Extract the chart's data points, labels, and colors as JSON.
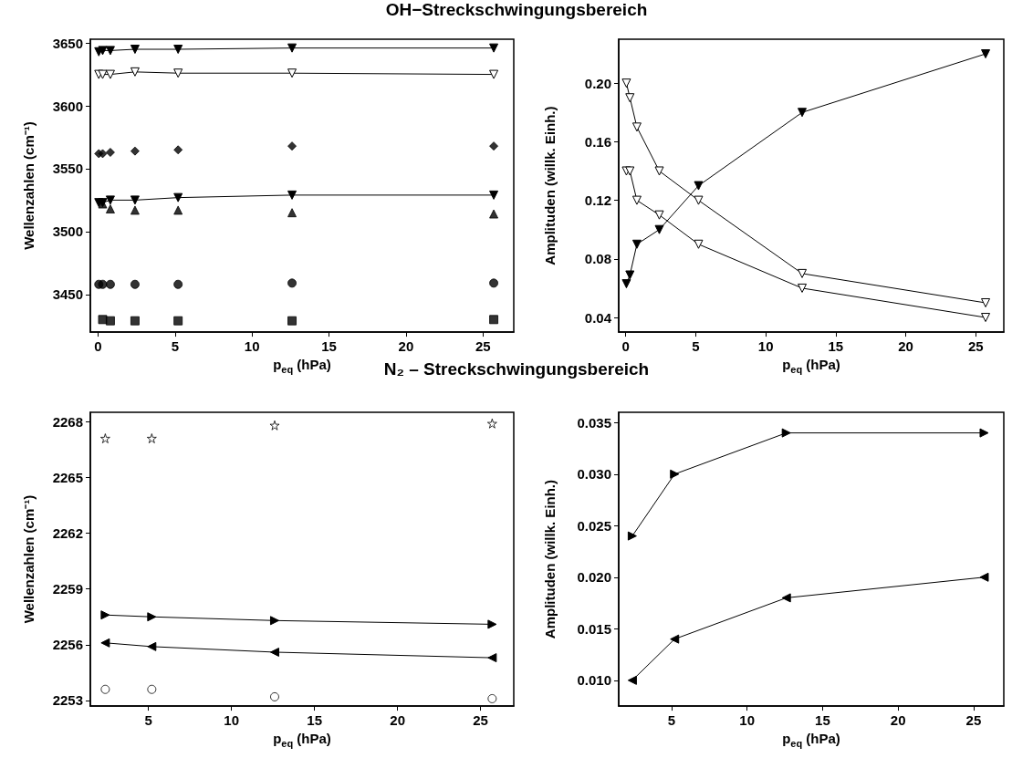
{
  "chart_data": [
    {
      "type": "line",
      "title": "OH−Streckschwingungsbereich",
      "xlabel": "p$_{eq}$ (hPa)",
      "ylabel": "Wellenzahlen (cm⁻¹)",
      "x": [
        0.05,
        0.3,
        0.8,
        2.4,
        5.2,
        12.6,
        25.7
      ],
      "xlim": [
        -0.5,
        27
      ],
      "xticks": [
        0,
        5,
        10,
        15,
        20,
        25
      ],
      "ylim": [
        3420,
        3653
      ],
      "yticks": [
        3450,
        3500,
        3550,
        3600,
        3650
      ],
      "grid": false,
      "line_style": "solid",
      "series": [
        {
          "type": "line",
          "marker": "triangle-down",
          "color": "#000000",
          "values": [
            3643,
            3644,
            3644,
            3645,
            3645,
            3646,
            3646
          ]
        },
        {
          "type": "line",
          "marker": "triangle-down-open",
          "color": "#000000",
          "values": [
            3625,
            3625,
            3625,
            3627,
            3626,
            3626,
            3625
          ]
        },
        {
          "type": "scatter",
          "marker": "diamond",
          "color": "#000000",
          "values": [
            3562,
            3562,
            3563,
            3564,
            3565,
            3568,
            3568
          ]
        },
        {
          "type": "line",
          "marker": "triangle-down",
          "color": "#000000",
          "values": [
            3523,
            3523,
            3525,
            3525,
            3527,
            3529,
            3529
          ]
        },
        {
          "type": "scatter",
          "marker": "triangle",
          "color": "#000000",
          "values": [
            null,
            3522,
            3518,
            3517,
            3517,
            3515,
            3514
          ]
        },
        {
          "type": "scatter",
          "marker": "circle",
          "color": "#000000",
          "values": [
            3458,
            3458,
            3458,
            3458,
            3458,
            3459,
            3459
          ]
        },
        {
          "type": "scatter",
          "marker": "square",
          "color": "#000000",
          "values": [
            null,
            3430,
            3429,
            3429,
            3429,
            3429,
            3430
          ]
        }
      ]
    },
    {
      "type": "line",
      "xlabel": "p$_{eq}$ (hPa)",
      "ylabel": "Amplituden (willk. Einh.)",
      "x": [
        0.05,
        0.3,
        0.8,
        2.4,
        5.2,
        12.6,
        25.7
      ],
      "xlim": [
        -0.5,
        27
      ],
      "xticks": [
        0,
        5,
        10,
        15,
        20,
        25
      ],
      "ylim": [
        0.03,
        0.23
      ],
      "yticks": [
        {
          "value": 0.04,
          "label": "0.04"
        },
        {
          "value": 0.08,
          "label": "0.08"
        },
        {
          "value": 0.12,
          "label": "0.12"
        },
        {
          "value": 0.16,
          "label": "0.16"
        },
        {
          "value": 0.2,
          "label": "0.20"
        }
      ],
      "grid": false,
      "line_style": "solid",
      "series": [
        {
          "type": "line",
          "marker": "triangle-down",
          "color": "#000000",
          "values": [
            0.063,
            0.069,
            0.09,
            0.1,
            0.13,
            0.18,
            0.22
          ]
        },
        {
          "type": "line",
          "marker": "triangle-down-open",
          "color": "#000000",
          "values": [
            0.2,
            0.19,
            0.17,
            0.14,
            0.12,
            0.07,
            0.05
          ]
        },
        {
          "type": "line",
          "marker": "triangle-down-open",
          "color": "#000000",
          "values": [
            0.14,
            0.14,
            0.12,
            0.11,
            0.09,
            0.06,
            0.04
          ]
        }
      ]
    },
    {
      "type": "line",
      "title": "N₂ – Streckschwingungsbereich",
      "xlabel": "p$_{eq}$ (hPa)",
      "ylabel": "Wellenzahlen (cm⁻¹)",
      "x": [
        2.4,
        5.2,
        12.6,
        25.7
      ],
      "xlim": [
        1.5,
        27
      ],
      "xticks": [
        5,
        10,
        15,
        20,
        25
      ],
      "ylim": [
        2252.7,
        2268.5
      ],
      "yticks": [
        2253,
        2256,
        2259,
        2262,
        2265,
        2268
      ],
      "grid": false,
      "line_style": "solid",
      "series": [
        {
          "type": "scatter",
          "marker": "star-open",
          "color": "#000000",
          "values": [
            2267.1,
            2267.1,
            2267.8,
            2267.9
          ]
        },
        {
          "type": "line",
          "marker": "triangle-right",
          "color": "#000000",
          "values": [
            2257.6,
            2257.5,
            2257.3,
            2257.1
          ]
        },
        {
          "type": "line",
          "marker": "triangle-left",
          "color": "#000000",
          "values": [
            2256.1,
            2255.9,
            2255.6,
            2255.3
          ]
        },
        {
          "type": "scatter",
          "marker": "circle-open",
          "color": "#000000",
          "values": [
            2253.6,
            2253.6,
            2253.2,
            2253.1
          ]
        }
      ]
    },
    {
      "type": "line",
      "xlabel": "p$_{eq}$ (hPa)",
      "ylabel": "Amplituden (willk. Einh.)",
      "x": [
        2.4,
        5.2,
        12.6,
        25.7
      ],
      "xlim": [
        1.5,
        27
      ],
      "xticks": [
        5,
        10,
        15,
        20,
        25
      ],
      "ylim": [
        0.0075,
        0.036
      ],
      "yticks": [
        {
          "value": 0.01,
          "label": "0.010"
        },
        {
          "value": 0.015,
          "label": "0.015"
        },
        {
          "value": 0.02,
          "label": "0.020"
        },
        {
          "value": 0.025,
          "label": "0.025"
        },
        {
          "value": 0.03,
          "label": "0.030"
        },
        {
          "value": 0.035,
          "label": "0.035"
        }
      ],
      "grid": false,
      "line_style": "solid",
      "series": [
        {
          "type": "line",
          "marker": "triangle-right",
          "color": "#000000",
          "values": [
            0.024,
            0.03,
            0.034,
            0.034
          ]
        },
        {
          "type": "line",
          "marker": "triangle-left",
          "color": "#000000",
          "values": [
            0.01,
            0.014,
            0.018,
            0.02
          ]
        }
      ]
    }
  ]
}
